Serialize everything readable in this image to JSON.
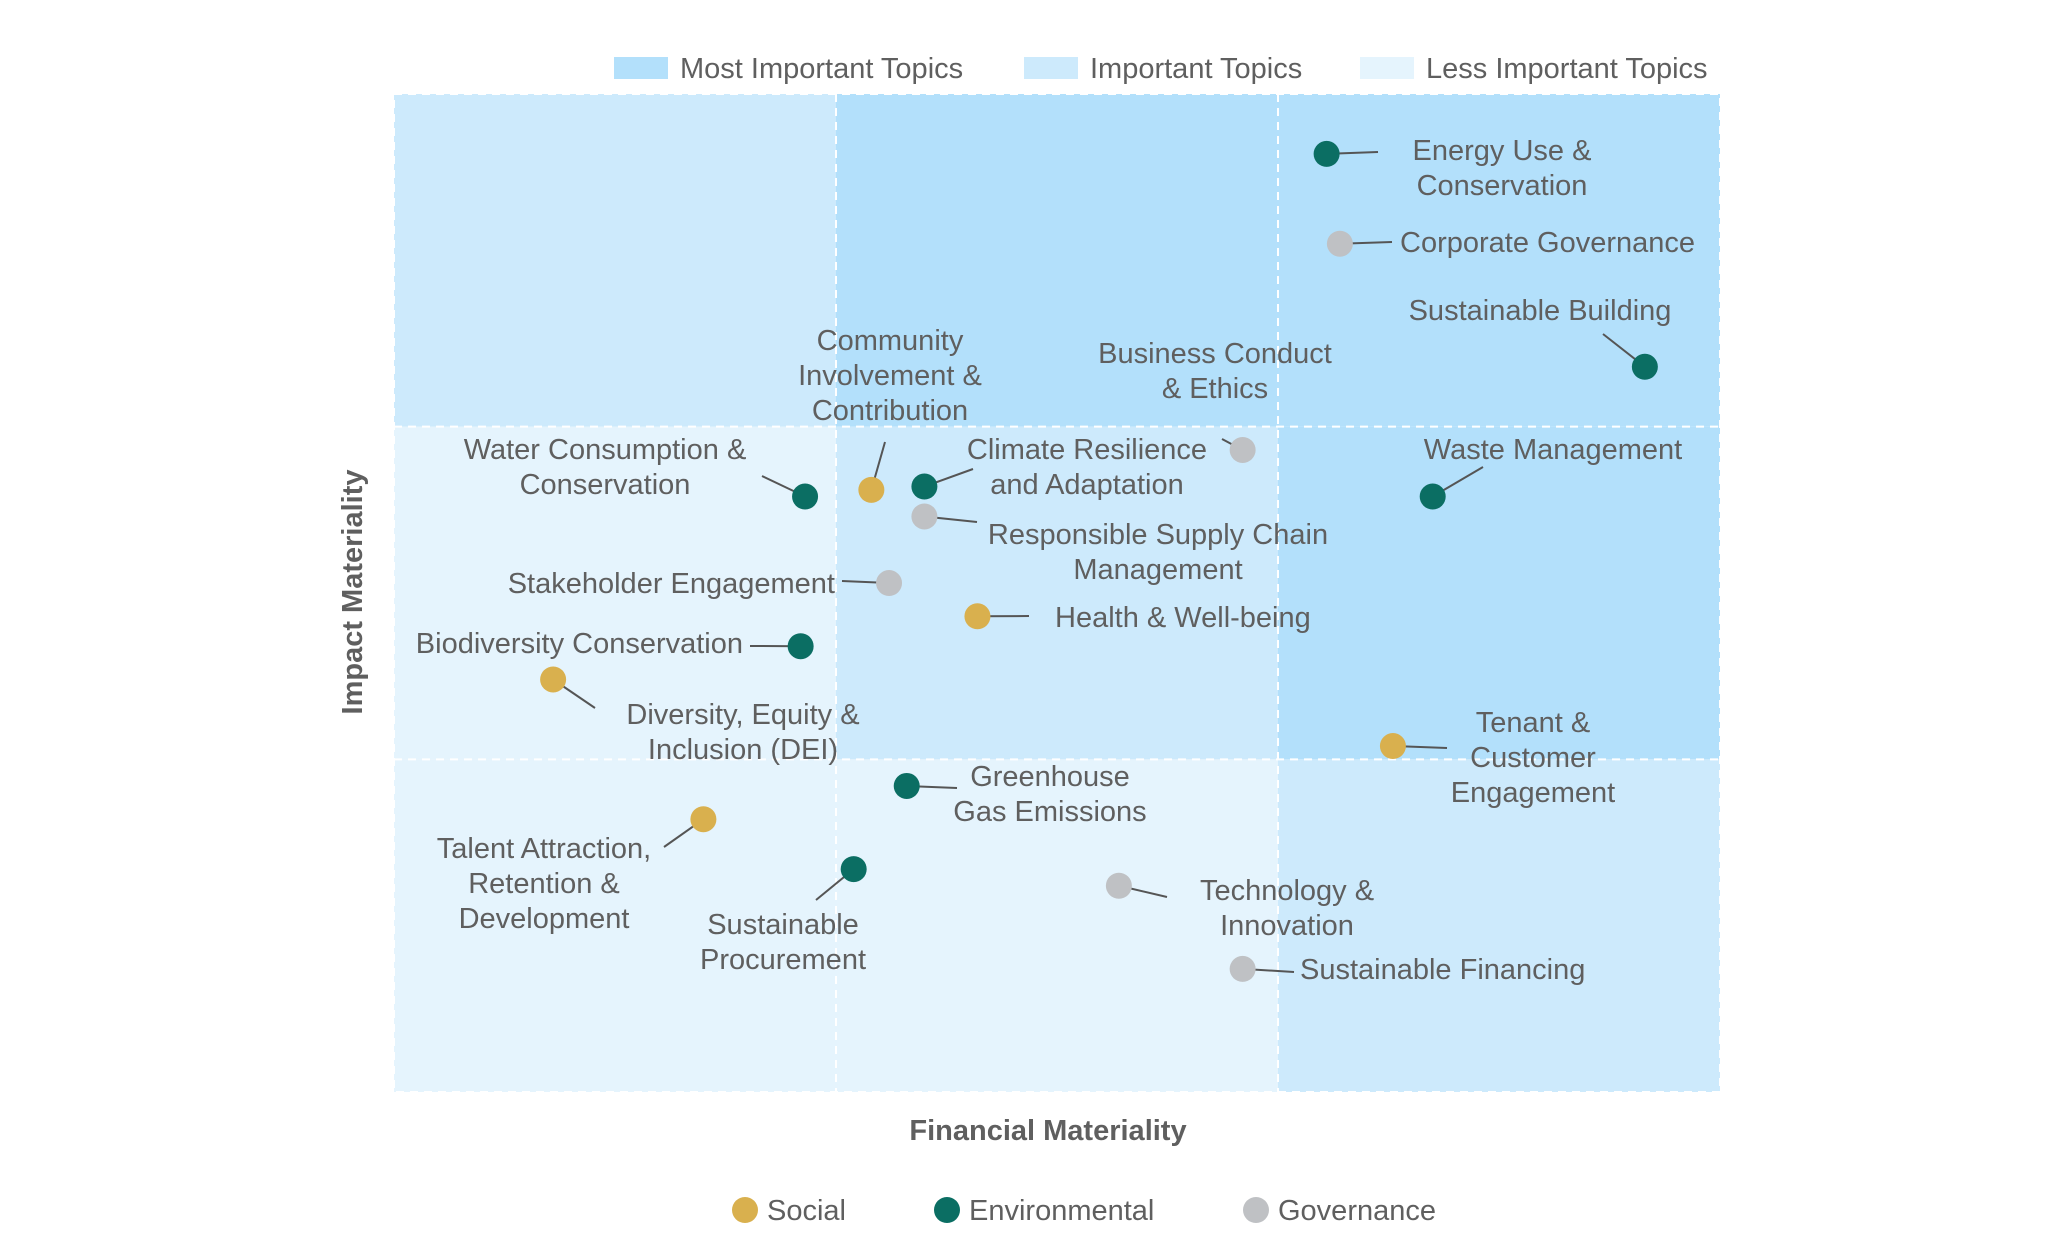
{
  "chart_data": {
    "type": "scatter",
    "title": "",
    "xlabel": "Financial Materiality",
    "ylabel": "Impact Materiality",
    "xlim": [
      0,
      3
    ],
    "ylim": [
      0,
      3
    ],
    "zone_legend": [
      {
        "label": "Most Important Topics",
        "color": "#b3e0fb"
      },
      {
        "label": "Important Topics",
        "color": "#cdeafc"
      },
      {
        "label": "Less Important Topics",
        "color": "#e5f4fd"
      }
    ],
    "category_legend": [
      {
        "label": "Social",
        "color": "#d9b04e"
      },
      {
        "label": "Environmental",
        "color": "#0b6e63"
      },
      {
        "label": "Governance",
        "color": "#bfc1c4"
      }
    ],
    "zones": [
      {
        "row": 2,
        "col": 0,
        "tier": 1
      },
      {
        "row": 2,
        "col": 1,
        "tier": 0
      },
      {
        "row": 2,
        "col": 2,
        "tier": 0
      },
      {
        "row": 1,
        "col": 0,
        "tier": 2
      },
      {
        "row": 1,
        "col": 1,
        "tier": 1
      },
      {
        "row": 1,
        "col": 2,
        "tier": 0
      },
      {
        "row": 0,
        "col": 0,
        "tier": 2
      },
      {
        "row": 0,
        "col": 1,
        "tier": 2
      },
      {
        "row": 0,
        "col": 2,
        "tier": 1
      }
    ],
    "points": [
      {
        "name": [
          "Energy Use &",
          "Conservation"
        ],
        "category": "Environmental",
        "x": 2.11,
        "y": 2.82
      },
      {
        "name": [
          "Corporate Governance"
        ],
        "category": "Governance",
        "x": 2.14,
        "y": 2.55
      },
      {
        "name": [
          "Sustainable Building"
        ],
        "category": "Environmental",
        "x": 2.83,
        "y": 2.18
      },
      {
        "name": [
          "Community",
          "Involvement &",
          "Contribution"
        ],
        "category": "Social",
        "x": 1.08,
        "y": 1.81
      },
      {
        "name": [
          "Business Conduct",
          "& Ethics"
        ],
        "category": "Governance",
        "x": 1.92,
        "y": 1.93
      },
      {
        "name": [
          "Water Consumption &",
          "Conservation"
        ],
        "category": "Environmental",
        "x": 0.93,
        "y": 1.79
      },
      {
        "name": [
          "Climate Resilience",
          "and Adaptation"
        ],
        "category": "Environmental",
        "x": 1.2,
        "y": 1.82
      },
      {
        "name": [
          "Responsible Supply Chain",
          "Management"
        ],
        "category": "Governance",
        "x": 1.2,
        "y": 1.73
      },
      {
        "name": [
          "Waste Management"
        ],
        "category": "Environmental",
        "x": 2.35,
        "y": 1.79
      },
      {
        "name": [
          "Stakeholder Engagement"
        ],
        "category": "Governance",
        "x": 1.12,
        "y": 1.53
      },
      {
        "name": [
          "Health & Well-being"
        ],
        "category": "Social",
        "x": 1.32,
        "y": 1.43
      },
      {
        "name": [
          "Biodiversity Conservation"
        ],
        "category": "Environmental",
        "x": 0.92,
        "y": 1.34
      },
      {
        "name": [
          "Diversity, Equity &",
          "Inclusion (DEI)"
        ],
        "category": "Social",
        "x": 0.36,
        "y": 1.24
      },
      {
        "name": [
          "Tenant &",
          "Customer",
          "Engagement"
        ],
        "category": "Social",
        "x": 2.26,
        "y": 1.04
      },
      {
        "name": [
          "Greenhouse",
          "Gas Emissions"
        ],
        "category": "Environmental",
        "x": 1.16,
        "y": 0.92
      },
      {
        "name": [
          "Talent Attraction,",
          "Retention &",
          "Development"
        ],
        "category": "Social",
        "x": 0.7,
        "y": 0.82
      },
      {
        "name": [
          "Sustainable",
          "Procurement"
        ],
        "category": "Environmental",
        "x": 1.04,
        "y": 0.67
      },
      {
        "name": [
          "Technology &",
          "Innovation"
        ],
        "category": "Governance",
        "x": 1.64,
        "y": 0.62
      },
      {
        "name": [
          "Sustainable Financing"
        ],
        "category": "Governance",
        "x": 1.92,
        "y": 0.37
      }
    ]
  }
}
